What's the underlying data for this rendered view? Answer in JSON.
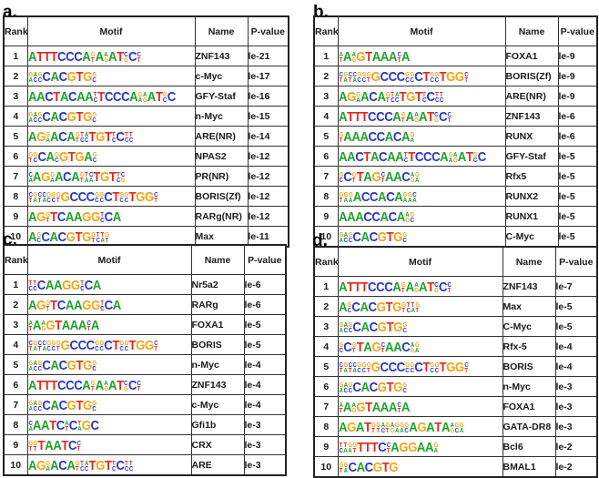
{
  "colors": {
    "A": "#1fa12a",
    "C": "#2836c8",
    "G": "#f2a516",
    "T": "#e02a1c"
  },
  "panels": [
    {
      "label": "a.",
      "headers": {
        "rank": "Rank",
        "motif": "Motif",
        "name": "Name",
        "pvalue": "P-value"
      },
      "rows": [
        {
          "rank": "1",
          "motif": "ATTTCCCA[gt]A[ag]AT[cg]C[ct]",
          "name": "ZNF143",
          "pvalue": "le-21"
        },
        {
          "rank": "2",
          "motif": "[ga][ac][gc]CACGTG[gc]",
          "name": "c-Myc",
          "pvalue": "le-17"
        },
        {
          "rank": "3",
          "motif": "AACTACAA[tc]TCCCA[ga][ag]AT[gc]C",
          "name": "GFY-Staf",
          "pvalue": "le-16"
        },
        {
          "rank": "4",
          "motif": "[ga][ac][gc]CACGTG[gc]",
          "name": "n-Myc",
          "pvalue": "le-15"
        },
        {
          "rank": "5",
          "motif": "AG[ga]ACA[gt][tc][ac]TGT[tc]C[tc][tc]",
          "name": "ARE(NR)",
          "pvalue": "le-14"
        },
        {
          "rank": "6",
          "motif": "[gt][gc]CA[gc]GTGA[gc]",
          "name": "NPAS2",
          "pvalue": "le-12"
        },
        {
          "rank": "7",
          "motif": "[ca]AG[ga]ACA[gt][ta][ca]TGT[tc][cg]",
          "name": "PR(NR)",
          "pvalue": "le-12"
        },
        {
          "rank": "8",
          "motif": "[ct][ga][ct][ca][gc][gc][gt]GCCC[gc][gc]CT[gc][gc]TGG[ct]",
          "name": "BORIS(Zf)",
          "pvalue": "le-12"
        },
        {
          "rank": "9",
          "motif": "AG[gt]TCAAGG[tc]CA",
          "name": "RARg(NR)",
          "pvalue": "le-12"
        },
        {
          "rank": "10",
          "motif": "A[gc]CACGTG[gt][tc][ta][gt]",
          "name": "Max",
          "pvalue": "le-11"
        }
      ]
    },
    {
      "label": "b.",
      "headers": {
        "rank": "Rank",
        "motif": "Motif",
        "name": "Name",
        "pvalue": "P-value"
      },
      "rows": [
        {
          "rank": "1",
          "motif": "[at]A[ag]GTAAA[ct]A",
          "name": "FOXA1",
          "pvalue": "le-9"
        },
        {
          "rank": "2",
          "motif": "[ct][ga][ct][ca][gc][gc][gt]GCCC[gc][gc]CT[gc][gc]TGG[ct]",
          "name": "BORIS(Zf)",
          "pvalue": "le-9"
        },
        {
          "rank": "3",
          "motif": "AG[ga]ACA[gt][tc][ac]TGT[tc]C[tc][tc]",
          "name": "ARE(NR)",
          "pvalue": "le-9"
        },
        {
          "rank": "4",
          "motif": "ATTTCCCA[gt]A[ag]AT[cg]C[ct]",
          "name": "ZNF143",
          "pvalue": "le-6"
        },
        {
          "rank": "5",
          "motif": "[gt]AAACCACA[ga]",
          "name": "RUNX",
          "pvalue": "le-6"
        },
        {
          "rank": "6",
          "motif": "AACTACAA[tc]TCCCA[ga][ag]AT[gc]C",
          "name": "GFY-Staf",
          "pvalue": "le-5"
        },
        {
          "rank": "7",
          "motif": "[gc]C[gt]TAG[ct]AAC[ag][ga]",
          "name": "Rfx5",
          "pvalue": "le-5"
        },
        {
          "rank": "8",
          "motif": "[gt][ga][ga]ACCACA[ga][ga][ca]",
          "name": "RUNX2",
          "pvalue": "le-5"
        },
        {
          "rank": "9",
          "motif": "AAACCACA[ag][gc]",
          "name": "RUNX1",
          "pvalue": "le-5"
        },
        {
          "rank": "10",
          "motif": "[ga][ac][gc]CACGTG[gc]",
          "name": "C-Myc",
          "pvalue": "le-5"
        }
      ]
    },
    {
      "label": "c.",
      "headers": {
        "rank": "Rank",
        "motif": "Motif",
        "name": "Name",
        "pvalue": "P-value"
      },
      "rows": [
        {
          "rank": "1",
          "motif": "[tc][tc]CAAGG[tc]CA",
          "name": "Nr5a2",
          "pvalue": "le-6"
        },
        {
          "rank": "2",
          "motif": "AG[gt]TCAAGG[tc]CA",
          "name": "RARg",
          "pvalue": "le-6"
        },
        {
          "rank": "3",
          "motif": "[at]A[ag]GTAAA[ct]A",
          "name": "FOXA1",
          "pvalue": "le-5"
        },
        {
          "rank": "4",
          "motif": "[ct][ga][ct][ca][gc][gc][gt]GCCC[gc][gc]CT[gc][gc]TGG[ct]",
          "name": "BORIS",
          "pvalue": "le-5"
        },
        {
          "rank": "5",
          "motif": "[ga][ac][gc]CACGTG[gc]",
          "name": "n-Myc",
          "pvalue": "le-4"
        },
        {
          "rank": "6",
          "motif": "ATTTCCCA[gt]A[ag]AT[cg]C[ct]",
          "name": "ZNF143",
          "pvalue": "le-4"
        },
        {
          "rank": "7",
          "motif": "[ga][ac][gc]CACGTG[gc]",
          "name": "c-Myc",
          "pvalue": "le-4"
        },
        {
          "rank": "8",
          "motif": "[ca]AATC[at]C[ta]GC",
          "name": "Gfi1b",
          "pvalue": "le-3"
        },
        {
          "rank": "9",
          "motif": "[gt][gt]TAATC[ct]",
          "name": "CRX",
          "pvalue": "le-3"
        },
        {
          "rank": "10",
          "motif": "AG[ga]ACA[gt][tc][ac]TGT[tc]C[tc][tc]",
          "name": "ARE",
          "pvalue": "le-3"
        }
      ]
    },
    {
      "label": "d.",
      "headers": {
        "rank": "Rank",
        "motif": "Motif",
        "name": "Name",
        "pvalue": "P-value"
      },
      "rows": [
        {
          "rank": "1",
          "motif": "ATTTCCCA[gt]A[ag]AT[cg]C[ct]",
          "name": "ZNF143",
          "pvalue": "le-7"
        },
        {
          "rank": "2",
          "motif": "A[gc]CACGTG[gt][tc][ta][gt]",
          "name": "Max",
          "pvalue": "le-5"
        },
        {
          "rank": "3",
          "motif": "[ga][ac][gc]CACGTG[gc]",
          "name": "C-Myc",
          "pvalue": "le-5"
        },
        {
          "rank": "4",
          "motif": "[gc]C[gt]TAG[ct]AAC[ag][ga]",
          "name": "Rfx-5",
          "pvalue": "le-4"
        },
        {
          "rank": "5",
          "motif": "[ct][ga][ct][ca][gc][gc][gt]GCCC[gc][gc]CT[gc][gc]TGG[ct]",
          "name": "BORIS",
          "pvalue": "le-4"
        },
        {
          "rank": "6",
          "motif": "[ga][ac][gc]CACGTG[gc]",
          "name": "n-Myc",
          "pvalue": "le-3"
        },
        {
          "rank": "7",
          "motif": "[at]A[ag]GTAAA[ct]A",
          "name": "FOXA1",
          "pvalue": "le-3"
        },
        {
          "rank": "8",
          "motif": "AGAT[gt][gt][ac][gt][ag][ga][ga][gc]AGATA[ag][gc][ga]",
          "name": "GATA-DR8",
          "pvalue": "le-3"
        },
        {
          "rank": "9",
          "motif": "[tc][ta][ga][gt]TTTC[ct]AGGAA[ga]",
          "name": "Bcl6",
          "pvalue": "le-2"
        },
        {
          "rank": "10",
          "motif": "[gt][ga]CACGTG",
          "name": "BMAL1",
          "pvalue": "le-2"
        }
      ]
    }
  ]
}
